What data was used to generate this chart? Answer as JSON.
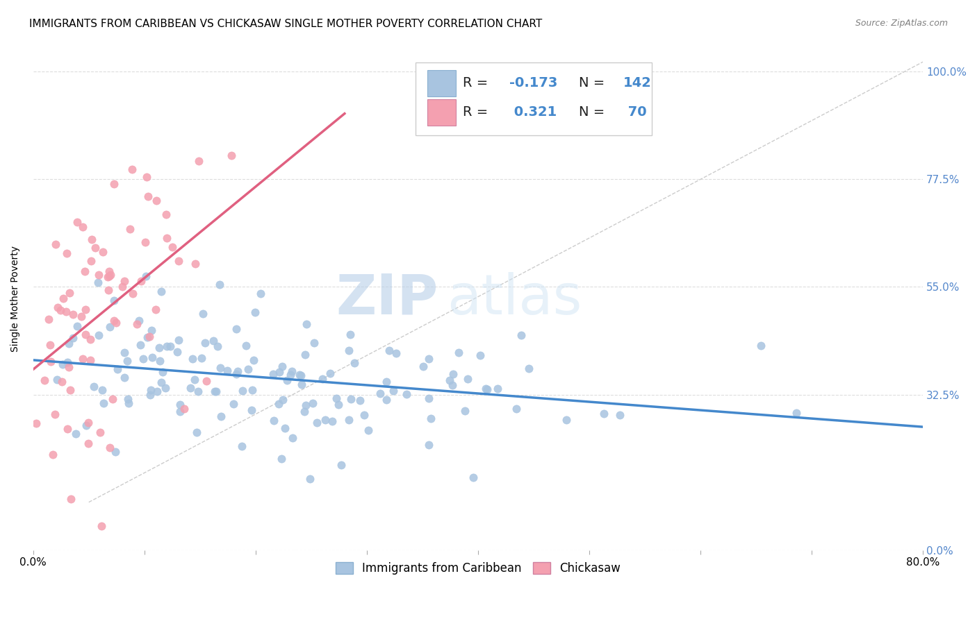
{
  "title": "IMMIGRANTS FROM CARIBBEAN VS CHICKASAW SINGLE MOTHER POVERTY CORRELATION CHART",
  "source": "Source: ZipAtlas.com",
  "ylabel": "Single Mother Poverty",
  "yticks": [
    "0.0%",
    "32.5%",
    "55.0%",
    "77.5%",
    "100.0%"
  ],
  "ytick_vals": [
    0.0,
    0.325,
    0.55,
    0.775,
    1.0
  ],
  "xmin": 0.0,
  "xmax": 0.8,
  "ymin": 0.0,
  "ymax": 1.05,
  "blue_R": "-0.173",
  "blue_N": "142",
  "pink_R": "0.321",
  "pink_N": "70",
  "blue_color": "#a8c4e0",
  "pink_color": "#f4a0b0",
  "blue_line_color": "#4488cc",
  "pink_line_color": "#e06080",
  "diag_line_color": "#cccccc",
  "legend_label_blue": "Immigrants from Caribbean",
  "legend_label_pink": "Chickasaw",
  "watermark_zip": "ZIP",
  "watermark_atlas": "atlas",
  "title_fontsize": 11,
  "source_fontsize": 9,
  "axis_label_fontsize": 10,
  "right_tick_color": "#5588cc"
}
